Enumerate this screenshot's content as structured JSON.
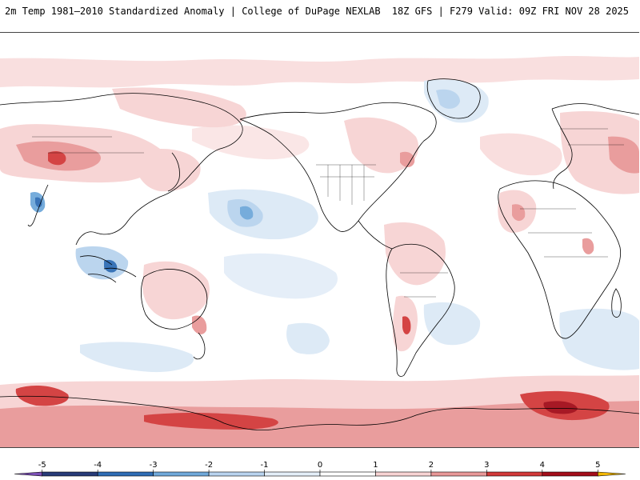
{
  "header": {
    "title": "2m Temp 1981–2010 Standardized Anomaly | College of DuPage NEXLAB",
    "run_info": "18Z GFS | F279 Valid: 09Z FRI NOV 28 2025"
  },
  "colorbar": {
    "ticks": [
      "-5",
      "-4",
      "-3",
      "-2",
      "-1",
      "0",
      "1",
      "2",
      "3",
      "4",
      "5"
    ],
    "bins": [
      {
        "from": -5.5,
        "to": -5,
        "color": "#7b4fb5"
      },
      {
        "from": -5,
        "to": -4,
        "color": "#273b78"
      },
      {
        "from": -4,
        "to": -3,
        "color": "#2f6db5"
      },
      {
        "from": -3,
        "to": -2,
        "color": "#6fa8da"
      },
      {
        "from": -2,
        "to": -1,
        "color": "#b8d3ee"
      },
      {
        "from": -1,
        "to": 0,
        "color": "#e4eef8"
      },
      {
        "from": 0,
        "to": 1,
        "color": "#ffffff"
      },
      {
        "from": 1,
        "to": 2,
        "color": "#f7d3d3"
      },
      {
        "from": 2,
        "to": 3,
        "color": "#e89898"
      },
      {
        "from": 3,
        "to": 4,
        "color": "#d23a3a"
      },
      {
        "from": 4,
        "to": 5,
        "color": "#a30d1a"
      },
      {
        "from": 5,
        "to": 5.5,
        "color": "#f2b705"
      }
    ]
  },
  "colors": {
    "warm_light": "#f7d3d3",
    "warm_mid": "#e89898",
    "warm_strong": "#d23a3a",
    "warm_extreme": "#a30d1a",
    "cool_light": "#dce9f6",
    "cool_mid": "#b8d3ee",
    "cool_strong": "#6fa8da",
    "cool_extreme": "#2f6db5",
    "coastline": "#000000"
  }
}
